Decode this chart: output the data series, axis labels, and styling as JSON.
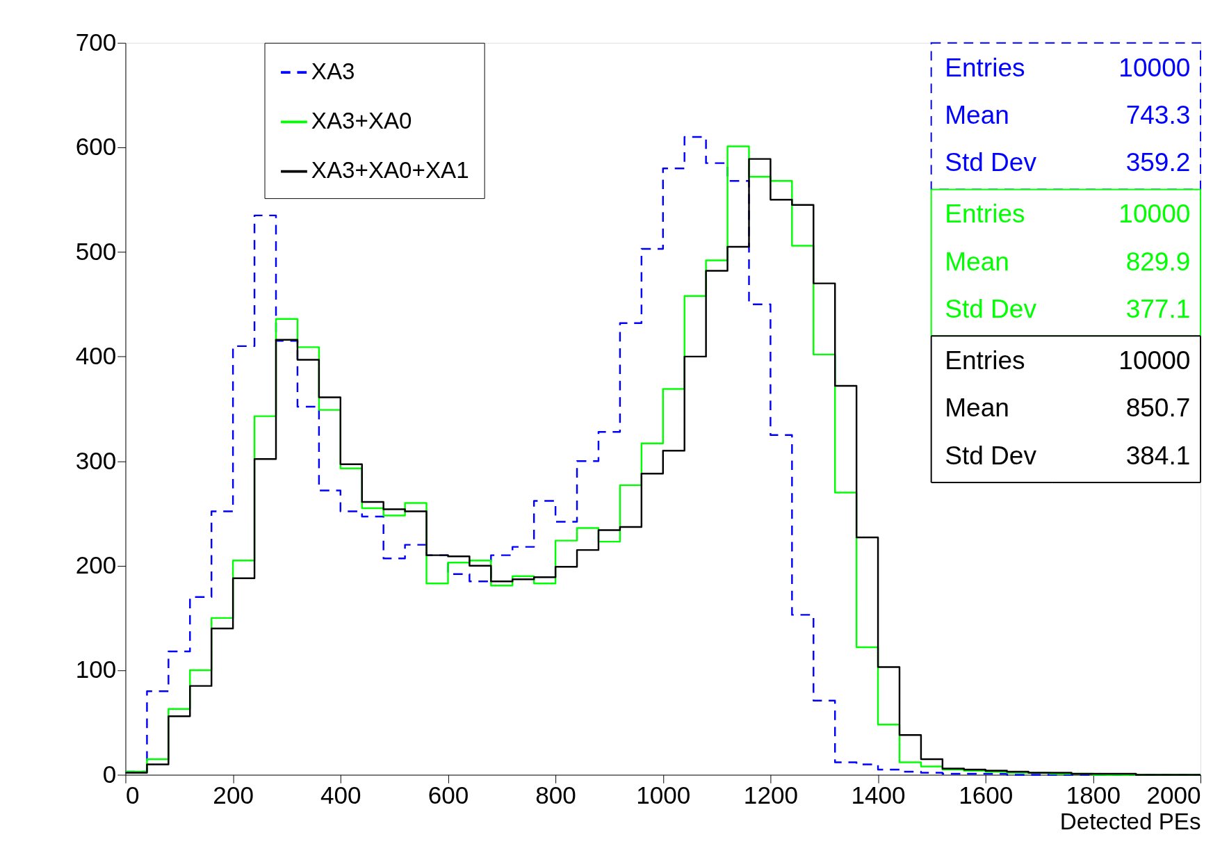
{
  "chart_data": {
    "type": "histogram",
    "xlabel": "Detected PEs",
    "bins": [
      0,
      40,
      80,
      120,
      160,
      200,
      240,
      280,
      320,
      360,
      400,
      440,
      480,
      520,
      560,
      600,
      640,
      680,
      720,
      760,
      800,
      840,
      880,
      920,
      960,
      1000,
      1040,
      1080,
      1120,
      1160,
      1200,
      1240,
      1280,
      1320,
      1360,
      1400,
      1440,
      1480,
      1520,
      1560,
      1600,
      1640,
      1680,
      1720,
      1760,
      1800,
      1840,
      1880,
      1920,
      1960,
      2000
    ],
    "series": [
      {
        "name": "XA3",
        "color": "#0000ff",
        "line_style": "dashed",
        "values": [
          3,
          80,
          118,
          170,
          252,
          410,
          535,
          415,
          352,
          272,
          252,
          247,
          207,
          220,
          210,
          192,
          185,
          210,
          218,
          262,
          242,
          300,
          328,
          432,
          503,
          580,
          610,
          585,
          568,
          450,
          325,
          153,
          71,
          12,
          10,
          5,
          3,
          2,
          1,
          1,
          1,
          0,
          0,
          0,
          0,
          0,
          0,
          0,
          0,
          0
        ]
      },
      {
        "name": "XA3+XA0",
        "color": "#00ff00",
        "line_style": "solid",
        "values": [
          3,
          15,
          63,
          100,
          150,
          205,
          343,
          436,
          409,
          349,
          293,
          255,
          248,
          260,
          183,
          203,
          205,
          181,
          190,
          183,
          224,
          236,
          223,
          277,
          317,
          369,
          458,
          492,
          601,
          572,
          568,
          506,
          402,
          270,
          122,
          48,
          12,
          8,
          5,
          4,
          3,
          2,
          2,
          1,
          1,
          0,
          0,
          0,
          0,
          0
        ]
      },
      {
        "name": "XA3+XA0+XA1",
        "color": "#000000",
        "line_style": "solid",
        "values": [
          2,
          10,
          56,
          85,
          140,
          188,
          302,
          416,
          397,
          361,
          297,
          261,
          254,
          252,
          210,
          209,
          200,
          185,
          187,
          189,
          199,
          215,
          234,
          237,
          288,
          310,
          400,
          482,
          505,
          589,
          550,
          545,
          470,
          372,
          227,
          103,
          38,
          15,
          6,
          5,
          4,
          3,
          2,
          2,
          1,
          1,
          1,
          0,
          0,
          0
        ]
      }
    ],
    "xlim": [
      0,
      2000
    ],
    "xticks": [
      0,
      200,
      400,
      600,
      800,
      1000,
      1200,
      1400,
      1600,
      1800,
      2000
    ],
    "ylim": [
      0,
      700
    ],
    "yticks": [
      0,
      100,
      200,
      300,
      400,
      500,
      600,
      700
    ],
    "legend": "top",
    "annotations": [
      "Entries",
      "10000",
      "Mean",
      "743.3",
      "Std Dev",
      "359.2",
      "Entries",
      "10000",
      "Mean",
      "829.9",
      "Std Dev",
      "377.1",
      "Entries",
      "10000",
      "Mean",
      "850.7",
      "Std Dev",
      "384.1"
    ]
  }
}
